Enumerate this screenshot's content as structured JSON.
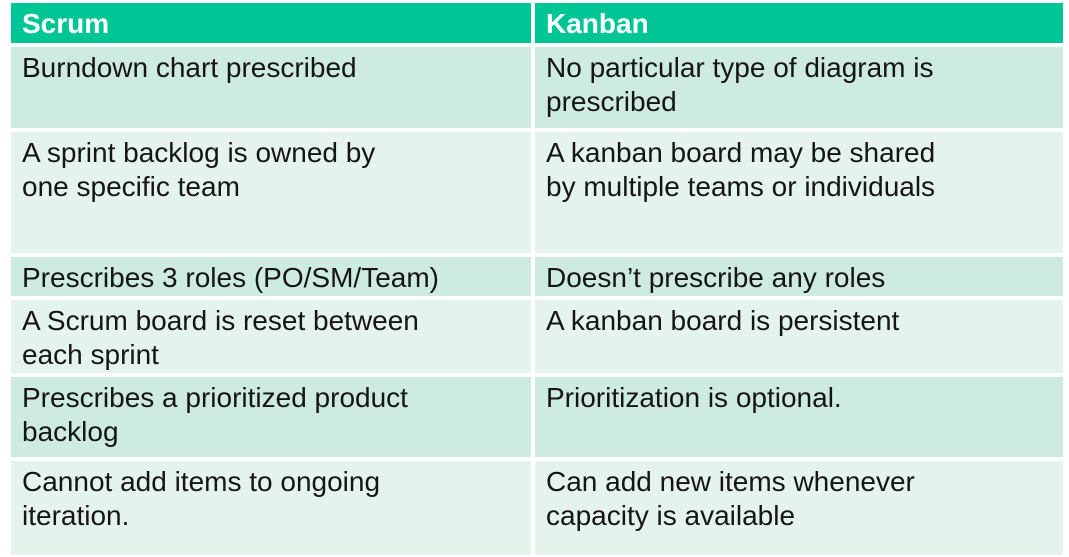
{
  "colors": {
    "header_bg": "#00C695",
    "header_text": "#FFFFFF",
    "row_shade_a": "#CDEBDE",
    "row_shade_b": "#E4F3EB",
    "body_text": "#151515",
    "background": "#FFFFFF"
  },
  "table": {
    "columns": [
      "Scrum",
      "Kanban"
    ],
    "rows": [
      {
        "scrum": "Burndown chart prescribed",
        "kanban": "No particular type of diagram is\nprescribed"
      },
      {
        "scrum": "A sprint backlog is owned by\none specific team",
        "kanban": "A kanban board may be shared\nby multiple teams or individuals"
      },
      {
        "scrum": "Prescribes 3 roles (PO/SM/Team)",
        "kanban": "Doesn’t prescribe any roles"
      },
      {
        "scrum": "A Scrum board is reset between\neach sprint",
        "kanban": "A kanban board is persistent"
      },
      {
        "scrum": "Prescribes a prioritized product\nbacklog",
        "kanban": "Prioritization is optional."
      },
      {
        "scrum": "Cannot add items to ongoing\niteration.",
        "kanban": "Can add new items whenever\ncapacity is available"
      }
    ]
  }
}
